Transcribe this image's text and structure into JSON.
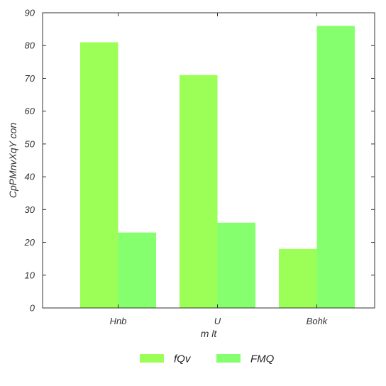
{
  "chart_data": {
    "type": "bar",
    "title": "",
    "xlabel": "m lt",
    "ylabel": "CpPMnvXqY con",
    "categories": [
      "Hnb",
      "U",
      "Bohk"
    ],
    "series": [
      {
        "name": "fQv",
        "values": [
          81,
          71,
          18
        ],
        "color": "#9cff57"
      },
      {
        "name": "FMQ",
        "values": [
          23,
          26,
          86
        ],
        "color": "#86ff6e"
      }
    ],
    "ylim": [
      0,
      90
    ],
    "yticks": [
      0,
      10,
      20,
      30,
      40,
      50,
      60,
      70,
      80,
      90
    ],
    "grid": false,
    "legend_position": "bottom-center"
  }
}
